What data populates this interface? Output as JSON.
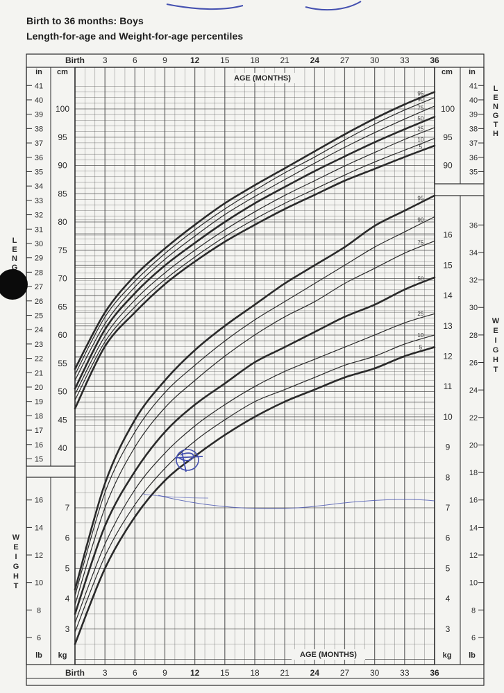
{
  "header": {
    "title": "Birth to 36 months: Boys",
    "subtitle": "Length-for-age and Weight-for-age percentiles"
  },
  "axis": {
    "age_label": "AGE (MONTHS)",
    "age_ticks": [
      "Birth",
      "3",
      "6",
      "9",
      "12",
      "15",
      "18",
      "21",
      "24",
      "27",
      "30",
      "33",
      "36"
    ],
    "length_label": "LENGTH",
    "weight_label": "WEIGHT",
    "unit_in": "in",
    "unit_cm": "cm",
    "unit_lb": "lb",
    "unit_kg": "kg"
  },
  "colors": {
    "ink": "#2a2a2a",
    "grid": "#4a4a4a",
    "annotation": "#4450b0",
    "paper": "#f4f4f1"
  },
  "chart_data": [
    {
      "type": "line",
      "title": "Length-for-age",
      "x_unit": "months",
      "y_unit": "cm",
      "xlim": [
        0,
        36
      ],
      "ylim": [
        45,
        104
      ],
      "x": [
        0,
        3,
        6,
        9,
        12,
        15,
        18,
        21,
        24,
        27,
        30,
        33,
        36
      ],
      "series": [
        {
          "name": "95",
          "values": [
            54.0,
            64.0,
            70.5,
            75.3,
            79.5,
            83.3,
            86.5,
            89.5,
            92.5,
            95.5,
            98.3,
            100.8,
            103.0
          ]
        },
        {
          "name": "90",
          "values": [
            53.0,
            63.2,
            69.5,
            74.4,
            78.6,
            82.3,
            85.6,
            88.7,
            91.5,
            94.5,
            97.3,
            99.8,
            102.0
          ]
        },
        {
          "name": "75",
          "values": [
            52.0,
            62.0,
            68.5,
            73.4,
            77.5,
            81.3,
            84.5,
            87.5,
            90.4,
            93.2,
            95.8,
            98.2,
            100.5
          ]
        },
        {
          "name": "50",
          "values": [
            50.5,
            61.0,
            67.4,
            72.3,
            76.3,
            80.0,
            83.3,
            86.2,
            89.0,
            91.6,
            94.1,
            96.4,
            98.6
          ]
        },
        {
          "name": "25",
          "values": [
            49.5,
            59.8,
            66.2,
            71.0,
            75.0,
            78.6,
            81.8,
            84.7,
            87.3,
            89.9,
            92.3,
            94.6,
            96.7
          ]
        },
        {
          "name": "10",
          "values": [
            48.5,
            58.8,
            65.0,
            69.8,
            73.8,
            77.4,
            80.5,
            83.3,
            85.8,
            88.3,
            90.6,
            92.7,
            94.8
          ]
        },
        {
          "name": "5",
          "values": [
            47.0,
            58.0,
            64.0,
            69.0,
            73.0,
            76.5,
            79.5,
            82.3,
            84.8,
            87.3,
            89.4,
            91.5,
            93.5
          ]
        }
      ]
    },
    {
      "type": "line",
      "title": "Weight-for-age",
      "x_unit": "months",
      "y_unit": "kg",
      "xlim": [
        0,
        36
      ],
      "ylim": [
        2,
        17.8
      ],
      "x": [
        0,
        3,
        6,
        9,
        12,
        15,
        18,
        21,
        24,
        27,
        30,
        33,
        36
      ],
      "series": [
        {
          "name": "95",
          "values": [
            4.3,
            7.8,
            9.9,
            11.2,
            12.2,
            13.0,
            13.7,
            14.4,
            15.0,
            15.6,
            16.3,
            16.8,
            17.3
          ]
        },
        {
          "name": "90",
          "values": [
            4.1,
            7.5,
            9.5,
            10.8,
            11.7,
            12.5,
            13.2,
            13.8,
            14.4,
            15.0,
            15.6,
            16.1,
            16.6
          ]
        },
        {
          "name": "75",
          "values": [
            3.8,
            7.0,
            9.0,
            10.3,
            11.2,
            12.0,
            12.7,
            13.3,
            13.8,
            14.4,
            14.9,
            15.4,
            15.8
          ]
        },
        {
          "name": "50",
          "values": [
            3.5,
            6.4,
            8.2,
            9.5,
            10.4,
            11.1,
            11.8,
            12.3,
            12.8,
            13.3,
            13.7,
            14.2,
            14.6
          ]
        },
        {
          "name": "25",
          "values": [
            3.2,
            5.8,
            7.6,
            8.8,
            9.7,
            10.4,
            11.0,
            11.5,
            11.9,
            12.3,
            12.7,
            13.1,
            13.4
          ]
        },
        {
          "name": "10",
          "values": [
            2.9,
            5.4,
            7.1,
            8.3,
            9.2,
            9.9,
            10.5,
            10.9,
            11.3,
            11.7,
            12.0,
            12.4,
            12.7
          ]
        },
        {
          "name": "5",
          "values": [
            2.5,
            5.0,
            6.7,
            7.9,
            8.7,
            9.4,
            10.0,
            10.5,
            10.9,
            11.3,
            11.6,
            12.0,
            12.3
          ]
        }
      ]
    }
  ]
}
